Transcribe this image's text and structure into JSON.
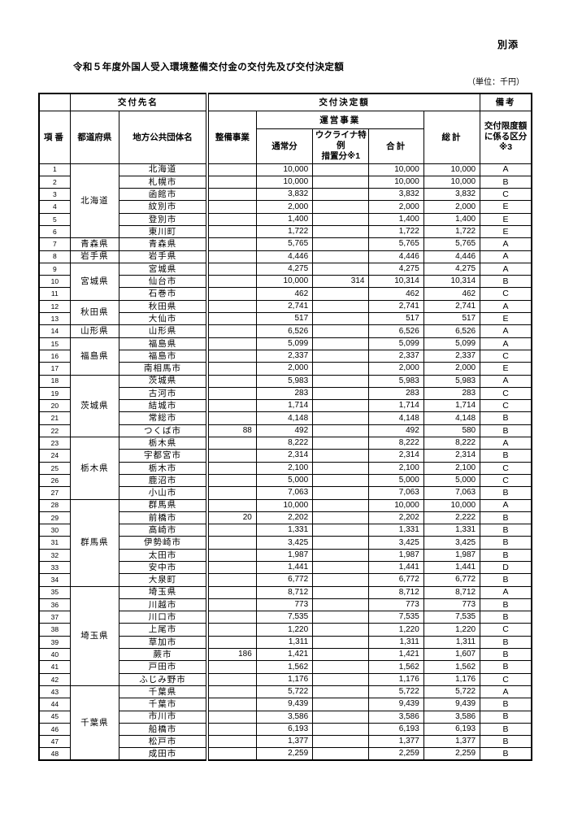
{
  "page": {
    "attachment_label": "別添",
    "title": "令和５年度外国人受入環境整備交付金の交付先及び交付決定額",
    "unit_note": "（単位：千円）"
  },
  "table": {
    "header": {
      "recipient_group": "交付先名",
      "grant_amount_group": "交付決定額",
      "remarks": "備考",
      "row_no": "項番",
      "prefecture": "都道府県",
      "municipality": "地方公共団体名",
      "development_project": "整備事業",
      "operation_project": "運営事業",
      "regular": "通常分",
      "ukraine_special": "ウクライナ特例\n措置分※1",
      "subtotal": "合計",
      "grand_total": "総計",
      "limit_category": "交付限度額\nに係る区分\n※3"
    },
    "rows": [
      {
        "no": "1",
        "pref": "北海道",
        "span": 6,
        "name": "北海道",
        "tsujo": "10,000",
        "gokei": "10,000",
        "sokei": "10,000",
        "kubun": "A"
      },
      {
        "no": "2",
        "name": "札幌市",
        "tsujo": "10,000",
        "gokei": "10,000",
        "sokei": "10,000",
        "kubun": "B"
      },
      {
        "no": "3",
        "name": "函館市",
        "tsujo": "3,832",
        "gokei": "3,832",
        "sokei": "3,832",
        "kubun": "C"
      },
      {
        "no": "4",
        "name": "紋別市",
        "tsujo": "2,000",
        "gokei": "2,000",
        "sokei": "2,000",
        "kubun": "E"
      },
      {
        "no": "5",
        "name": "登別市",
        "tsujo": "1,400",
        "gokei": "1,400",
        "sokei": "1,400",
        "kubun": "E"
      },
      {
        "no": "6",
        "name": "東川町",
        "tsujo": "1,722",
        "gokei": "1,722",
        "sokei": "1,722",
        "kubun": "E"
      },
      {
        "no": "7",
        "pref": "青森県",
        "span": 1,
        "name": "青森県",
        "tsujo": "5,765",
        "gokei": "5,765",
        "sokei": "5,765",
        "kubun": "A"
      },
      {
        "no": "8",
        "pref": "岩手県",
        "span": 1,
        "name": "岩手県",
        "tsujo": "4,446",
        "gokei": "4,446",
        "sokei": "4,446",
        "kubun": "A"
      },
      {
        "no": "9",
        "pref": "宮城県",
        "span": 3,
        "name": "宮城県",
        "tsujo": "4,275",
        "gokei": "4,275",
        "sokei": "4,275",
        "kubun": "A"
      },
      {
        "no": "10",
        "name": "仙台市",
        "tsujo": "10,000",
        "ukr": "314",
        "gokei": "10,314",
        "sokei": "10,314",
        "kubun": "B"
      },
      {
        "no": "11",
        "name": "石巻市",
        "tsujo": "462",
        "gokei": "462",
        "sokei": "462",
        "kubun": "C"
      },
      {
        "no": "12",
        "pref": "秋田県",
        "span": 2,
        "name": "秋田県",
        "tsujo": "2,741",
        "gokei": "2,741",
        "sokei": "2,741",
        "kubun": "A"
      },
      {
        "no": "13",
        "name": "大仙市",
        "tsujo": "517",
        "gokei": "517",
        "sokei": "517",
        "kubun": "E"
      },
      {
        "no": "14",
        "pref": "山形県",
        "span": 1,
        "name": "山形県",
        "tsujo": "6,526",
        "gokei": "6,526",
        "sokei": "6,526",
        "kubun": "A"
      },
      {
        "no": "15",
        "pref": "福島県",
        "span": 3,
        "name": "福島県",
        "tsujo": "5,099",
        "gokei": "5,099",
        "sokei": "5,099",
        "kubun": "A"
      },
      {
        "no": "16",
        "name": "福島市",
        "tsujo": "2,337",
        "gokei": "2,337",
        "sokei": "2,337",
        "kubun": "C"
      },
      {
        "no": "17",
        "name": "南相馬市",
        "tsujo": "2,000",
        "gokei": "2,000",
        "sokei": "2,000",
        "kubun": "E"
      },
      {
        "no": "18",
        "pref": "茨城県",
        "span": 5,
        "name": "茨城県",
        "tsujo": "5,983",
        "gokei": "5,983",
        "sokei": "5,983",
        "kubun": "A"
      },
      {
        "no": "19",
        "name": "古河市",
        "tsujo": "283",
        "gokei": "283",
        "sokei": "283",
        "kubun": "C"
      },
      {
        "no": "20",
        "name": "結城市",
        "tsujo": "1,714",
        "gokei": "1,714",
        "sokei": "1,714",
        "kubun": "C"
      },
      {
        "no": "21",
        "name": "常総市",
        "tsujo": "4,148",
        "gokei": "4,148",
        "sokei": "4,148",
        "kubun": "B"
      },
      {
        "no": "22",
        "name": "つくば市",
        "seibi": "88",
        "tsujo": "492",
        "gokei": "492",
        "sokei": "580",
        "kubun": "B"
      },
      {
        "no": "23",
        "pref": "栃木県",
        "span": 5,
        "name": "栃木県",
        "tsujo": "8,222",
        "gokei": "8,222",
        "sokei": "8,222",
        "kubun": "A"
      },
      {
        "no": "24",
        "name": "宇都宮市",
        "tsujo": "2,314",
        "gokei": "2,314",
        "sokei": "2,314",
        "kubun": "B"
      },
      {
        "no": "25",
        "name": "栃木市",
        "tsujo": "2,100",
        "gokei": "2,100",
        "sokei": "2,100",
        "kubun": "C"
      },
      {
        "no": "26",
        "name": "鹿沼市",
        "tsujo": "5,000",
        "gokei": "5,000",
        "sokei": "5,000",
        "kubun": "C"
      },
      {
        "no": "27",
        "name": "小山市",
        "tsujo": "7,063",
        "gokei": "7,063",
        "sokei": "7,063",
        "kubun": "B"
      },
      {
        "no": "28",
        "pref": "群馬県",
        "span": 7,
        "name": "群馬県",
        "tsujo": "10,000",
        "gokei": "10,000",
        "sokei": "10,000",
        "kubun": "A"
      },
      {
        "no": "29",
        "name": "前橋市",
        "seibi": "20",
        "tsujo": "2,202",
        "gokei": "2,202",
        "sokei": "2,222",
        "kubun": "B"
      },
      {
        "no": "30",
        "name": "高崎市",
        "tsujo": "1,331",
        "gokei": "1,331",
        "sokei": "1,331",
        "kubun": "B"
      },
      {
        "no": "31",
        "name": "伊勢崎市",
        "tsujo": "3,425",
        "gokei": "3,425",
        "sokei": "3,425",
        "kubun": "B"
      },
      {
        "no": "32",
        "name": "太田市",
        "tsujo": "1,987",
        "gokei": "1,987",
        "sokei": "1,987",
        "kubun": "B"
      },
      {
        "no": "33",
        "name": "安中市",
        "tsujo": "1,441",
        "gokei": "1,441",
        "sokei": "1,441",
        "kubun": "D"
      },
      {
        "no": "34",
        "name": "大泉町",
        "tsujo": "6,772",
        "gokei": "6,772",
        "sokei": "6,772",
        "kubun": "B"
      },
      {
        "no": "35",
        "pref": "埼玉県",
        "span": 8,
        "name": "埼玉県",
        "tsujo": "8,712",
        "gokei": "8,712",
        "sokei": "8,712",
        "kubun": "A"
      },
      {
        "no": "36",
        "name": "川越市",
        "tsujo": "773",
        "gokei": "773",
        "sokei": "773",
        "kubun": "B"
      },
      {
        "no": "37",
        "name": "川口市",
        "tsujo": "7,535",
        "gokei": "7,535",
        "sokei": "7,535",
        "kubun": "B"
      },
      {
        "no": "38",
        "name": "上尾市",
        "tsujo": "1,220",
        "gokei": "1,220",
        "sokei": "1,220",
        "kubun": "C"
      },
      {
        "no": "39",
        "name": "草加市",
        "tsujo": "1,311",
        "gokei": "1,311",
        "sokei": "1,311",
        "kubun": "B"
      },
      {
        "no": "40",
        "name": "蕨市",
        "seibi": "186",
        "tsujo": "1,421",
        "gokei": "1,421",
        "sokei": "1,607",
        "kubun": "B"
      },
      {
        "no": "41",
        "name": "戸田市",
        "tsujo": "1,562",
        "gokei": "1,562",
        "sokei": "1,562",
        "kubun": "B"
      },
      {
        "no": "42",
        "name": "ふじみ野市",
        "tsujo": "1,176",
        "gokei": "1,176",
        "sokei": "1,176",
        "kubun": "C"
      },
      {
        "no": "43",
        "pref": "千葉県",
        "span": 6,
        "name": "千葉県",
        "tsujo": "5,722",
        "gokei": "5,722",
        "sokei": "5,722",
        "kubun": "A"
      },
      {
        "no": "44",
        "name": "千葉市",
        "tsujo": "9,439",
        "gokei": "9,439",
        "sokei": "9,439",
        "kubun": "B"
      },
      {
        "no": "45",
        "name": "市川市",
        "tsujo": "3,586",
        "gokei": "3,586",
        "sokei": "3,586",
        "kubun": "B"
      },
      {
        "no": "46",
        "name": "船橋市",
        "tsujo": "6,193",
        "gokei": "6,193",
        "sokei": "6,193",
        "kubun": "B"
      },
      {
        "no": "47",
        "name": "松戸市",
        "tsujo": "1,377",
        "gokei": "1,377",
        "sokei": "1,377",
        "kubun": "B"
      },
      {
        "no": "48",
        "name": "成田市",
        "tsujo": "2,259",
        "gokei": "2,259",
        "sokei": "2,259",
        "kubun": "B"
      }
    ]
  }
}
